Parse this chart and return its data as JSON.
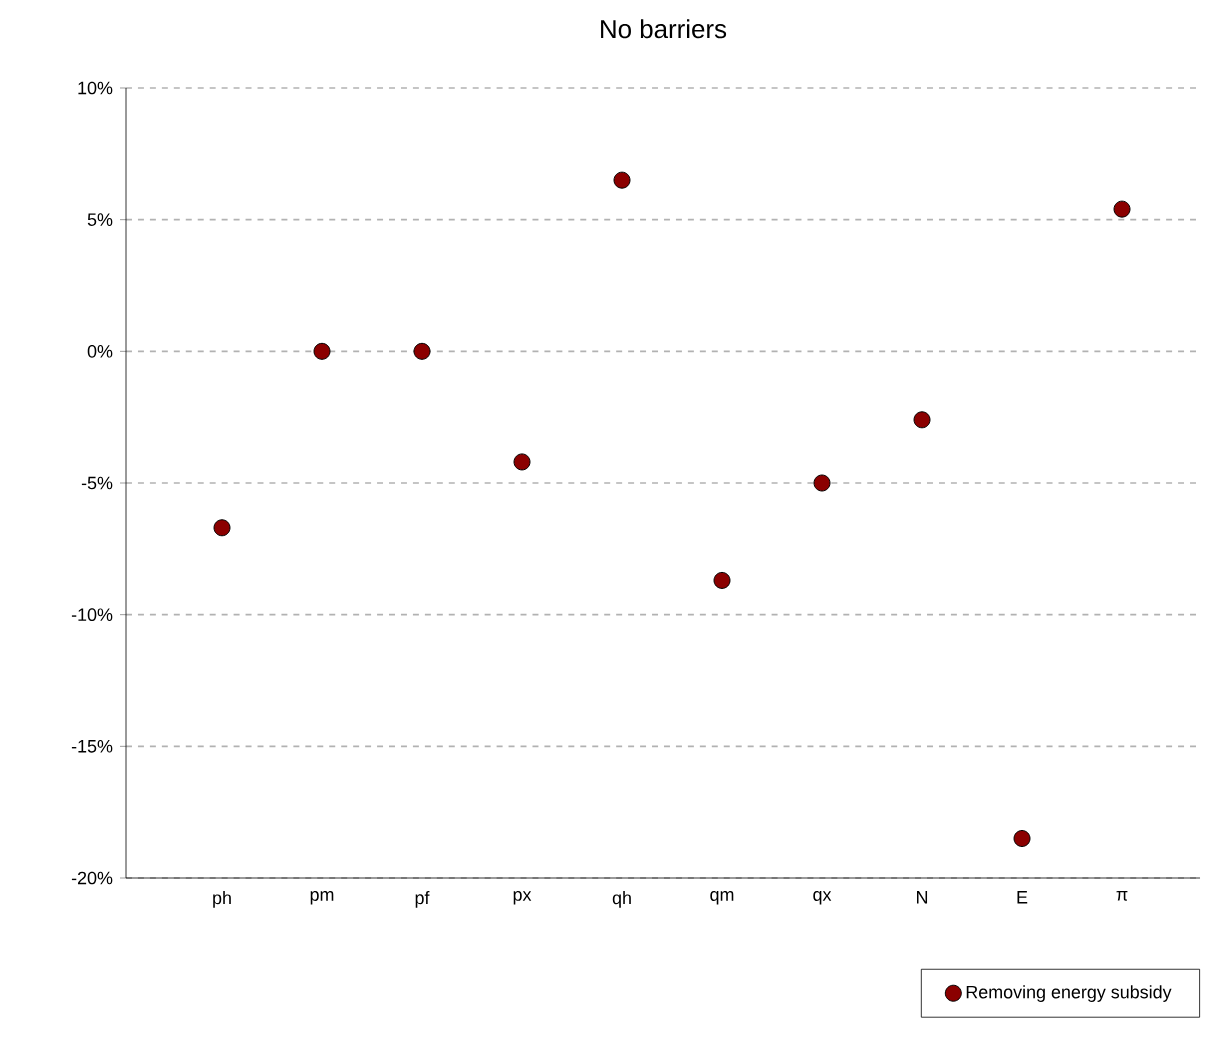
{
  "chart_data": {
    "type": "scatter",
    "title": "No barriers",
    "categories": [
      "ph",
      "pm",
      "pf",
      "px",
      "qh",
      "qm",
      "qx",
      "N",
      "E",
      "π"
    ],
    "series": [
      {
        "name": "Removing energy subsidy",
        "color": "#8b0000",
        "values": [
          -6.7,
          0,
          0,
          -4.2,
          6.5,
          -8.7,
          -5.0,
          -2.6,
          -18.5,
          5.4
        ]
      }
    ],
    "ylim": [
      -20,
      10
    ],
    "yticks": [
      {
        "value": -20,
        "label": "-20%"
      },
      {
        "value": -15,
        "label": "-15%"
      },
      {
        "value": -10,
        "label": "-10%"
      },
      {
        "value": -5,
        "label": "-5%"
      },
      {
        "value": 0,
        "label": "0%"
      },
      {
        "value": 5,
        "label": "5%"
      },
      {
        "value": 10,
        "label": "10%"
      }
    ],
    "grid": "y",
    "legend": "bottom right",
    "marker": "circle"
  }
}
